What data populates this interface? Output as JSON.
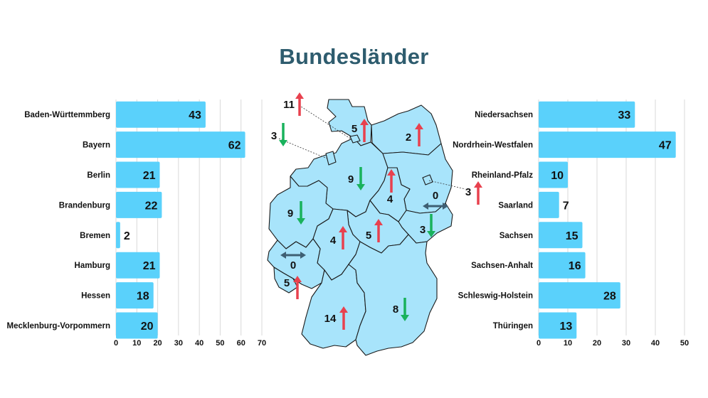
{
  "title": "Bundesländer",
  "colors": {
    "bar": "#5ad1fb",
    "up": "#e8414e",
    "down": "#19b25c",
    "neutral": "#3e5f73",
    "map_fill": "#a8e4fb",
    "title": "#2e5c6e",
    "grid": "#d9d9d9"
  },
  "chart_data": [
    {
      "type": "bar",
      "orientation": "horizontal",
      "categories": [
        "Baden-Württemmberg",
        "Bayern",
        "Berlin",
        "Brandenburg",
        "Bremen",
        "Hamburg",
        "Hessen",
        "Mecklenburg-Vorpommern"
      ],
      "values": [
        43,
        62,
        21,
        22,
        2,
        21,
        18,
        20
      ],
      "xlim": [
        0,
        70
      ],
      "xticks": [
        0,
        10,
        20,
        30,
        40,
        50,
        60,
        70
      ],
      "grid": true
    },
    {
      "type": "bar",
      "orientation": "horizontal",
      "categories": [
        "Niedersachsen",
        "Nordrhein-Westfalen",
        "Rheinland-Pfalz",
        "Saarland",
        "Sachsen",
        "Sachsen-Anhalt",
        "Schleswig-Holstein",
        "Thüringen"
      ],
      "values": [
        33,
        47,
        10,
        7,
        15,
        16,
        28,
        13
      ],
      "xlim": [
        0,
        50
      ],
      "xticks": [
        0,
        10,
        20,
        30,
        40,
        50
      ],
      "grid": true
    }
  ],
  "map_labels": [
    {
      "id": "schleswig-holstein",
      "value": "5",
      "trend": "up"
    },
    {
      "id": "hamburg",
      "value": "11",
      "trend": "up"
    },
    {
      "id": "bremen",
      "value": "3",
      "trend": "down"
    },
    {
      "id": "mecklenburg-vorpommern",
      "value": "2",
      "trend": "up"
    },
    {
      "id": "niedersachsen",
      "value": "9",
      "trend": "down"
    },
    {
      "id": "sachsen-anhalt",
      "value": "4",
      "trend": "up"
    },
    {
      "id": "berlin",
      "value": "3",
      "trend": "up"
    },
    {
      "id": "brandenburg",
      "value": "0",
      "trend": "neutral"
    },
    {
      "id": "nordrhein-westfalen",
      "value": "9",
      "trend": "down"
    },
    {
      "id": "sachsen",
      "value": "3",
      "trend": "down"
    },
    {
      "id": "hessen",
      "value": "4",
      "trend": "up"
    },
    {
      "id": "thueringen",
      "value": "5",
      "trend": "up"
    },
    {
      "id": "rheinland-pfalz",
      "value": "0",
      "trend": "neutral"
    },
    {
      "id": "saarland",
      "value": "5",
      "trend": "up"
    },
    {
      "id": "baden-wuerttemberg",
      "value": "14",
      "trend": "up"
    },
    {
      "id": "bayern",
      "value": "8",
      "trend": "down"
    }
  ]
}
